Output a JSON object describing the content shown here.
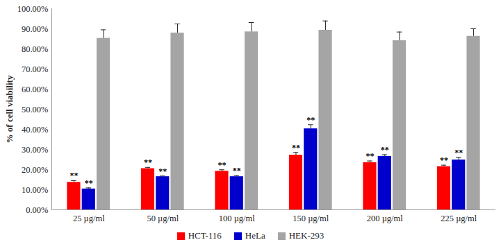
{
  "chart_data": {
    "type": "bar",
    "y_label": "% of cell viability",
    "categories": [
      "25 µg/ml",
      "50 µg/ml",
      "100 µg/ml",
      "150 µg/ml",
      "200 µg/ml",
      "225 µg/ml"
    ],
    "series": [
      {
        "name": "HCT-116",
        "color": "#ff0000",
        "values": [
          13.7,
          20.5,
          19.2,
          27.2,
          23.5,
          21.5
        ],
        "errors": [
          0.8,
          0.6,
          0.7,
          1.3,
          0.8,
          0.7
        ],
        "significance": [
          "**",
          "**",
          "**",
          "**",
          "**",
          "**"
        ]
      },
      {
        "name": "HeLa",
        "color": "#0000cc",
        "values": [
          10.4,
          16.5,
          16.5,
          40.3,
          26.6,
          24.8
        ],
        "errors": [
          0.5,
          0.3,
          0.5,
          2.0,
          0.8,
          1.2
        ],
        "significance": [
          "**",
          "**",
          "**",
          "**",
          "**",
          "**"
        ]
      },
      {
        "name": "HEK-293",
        "color": "#a5a5a5",
        "values": [
          85.3,
          87.9,
          88.5,
          89.3,
          84.1,
          86.3
        ],
        "errors": [
          4.2,
          4.5,
          4.6,
          4.6,
          4.3,
          3.7
        ]
      }
    ],
    "ylim": [
      0,
      100
    ],
    "yticks": [
      {
        "value": 0,
        "label": "0.00%"
      },
      {
        "value": 10,
        "label": "10.00%"
      },
      {
        "value": 20,
        "label": "20.00%"
      },
      {
        "value": 30,
        "label": "30.00%"
      },
      {
        "value": 40,
        "label": "40.00%"
      },
      {
        "value": 50,
        "label": "50.00%"
      },
      {
        "value": 60,
        "label": "60.00%"
      },
      {
        "value": 70,
        "label": "70.00%"
      },
      {
        "value": 80,
        "label": "80.00%"
      },
      {
        "value": 90,
        "label": "90.00%"
      },
      {
        "value": 100,
        "label": "100.00%"
      }
    ],
    "grid": false,
    "legend": "bottom"
  }
}
